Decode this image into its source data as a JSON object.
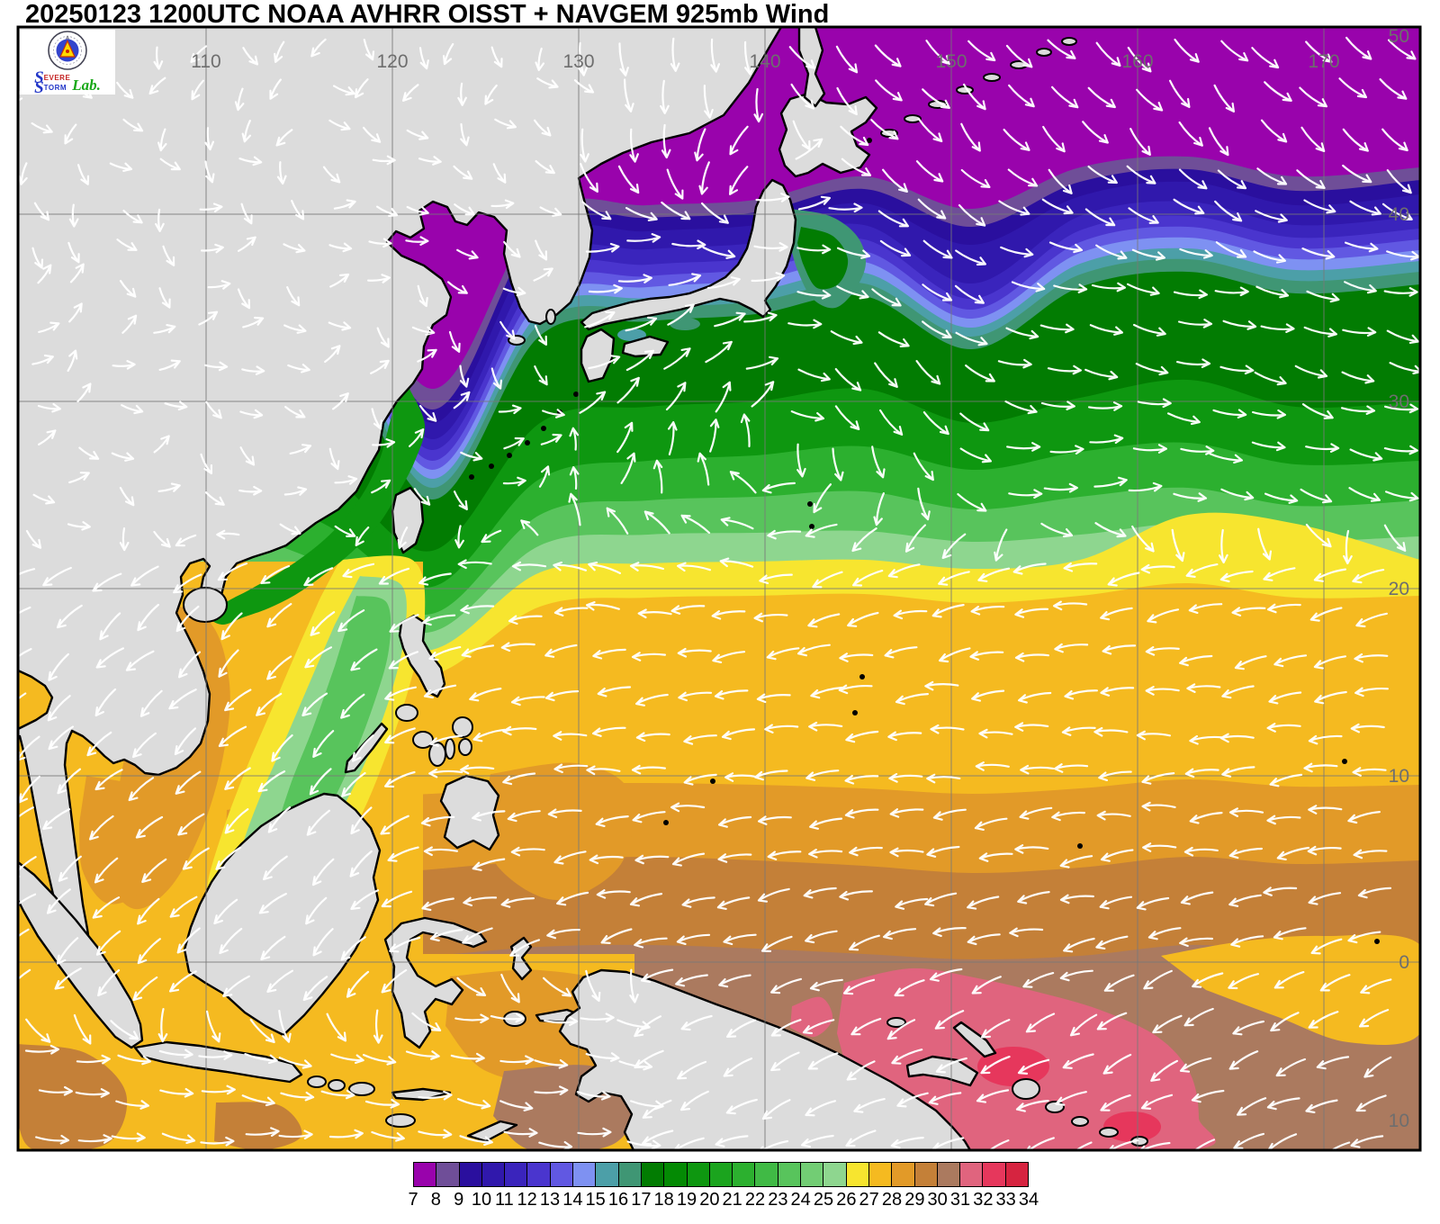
{
  "title": "20250123 1200UTC NOAA AVHRR OISST + NAVGEM 925mb Wind",
  "logo": {
    "seal_name": "university-seal",
    "brand_s1": "S",
    "brand_evere": "EVERE",
    "brand_s2": "S",
    "brand_torm": "TORM",
    "brand_lab": "Lab."
  },
  "axes": {
    "lon_labels": [
      "110",
      "120",
      "130",
      "140",
      "150",
      "160",
      "170"
    ],
    "lat_labels": [
      "50",
      "40",
      "30",
      "20",
      "10",
      "0",
      "10"
    ]
  },
  "colorbar": {
    "tick_labels": [
      "7",
      "8",
      "9",
      "10",
      "11",
      "12",
      "13",
      "14",
      "15",
      "16",
      "17",
      "18",
      "19",
      "20",
      "21",
      "22",
      "23",
      "24",
      "25",
      "26",
      "27",
      "28",
      "29",
      "30",
      "31",
      "32",
      "33",
      "34"
    ],
    "cell_colors": [
      "#9903AC",
      "#6F4E98",
      "#2A0F9E",
      "#3018AC",
      "#3A24BC",
      "#4A35CE",
      "#6158E2",
      "#7E91F2",
      "#4C9FA8",
      "#3F9674",
      "#027C02",
      "#048A04",
      "#0E9710",
      "#1BA41E",
      "#2CB02F",
      "#40BA45",
      "#58C45C",
      "#72CD74",
      "#8ED68F",
      "#F7E52F",
      "#F5BA20",
      "#E29A28",
      "#C48038",
      "#AB7A5F",
      "#E0647E",
      "#E6375C",
      "#D62440"
    ]
  },
  "palette": {
    "land": "#DCDCDC",
    "coast": "#000000",
    "grid": "#787878",
    "axis_label": "#6E6E6E",
    "wind": "#FFFFFF",
    "title_color": "#000000",
    "map_border": "#000000"
  },
  "chart_data": {
    "type": "heatmap",
    "title": "20250123 1200UTC NOAA AVHRR OISST + NAVGEM 925mb Wind",
    "field": "Sea surface temperature (deg C, shaded) with NAVGEM 925mb wind streamlines (white arrows)",
    "lon_range_deg_e": [
      100,
      175.5
    ],
    "lat_range_deg_n": [
      -10,
      50
    ],
    "lon_gridlines_deg_e": [
      110,
      120,
      130,
      140,
      150,
      160,
      170
    ],
    "lat_gridlines_deg_n": [
      50,
      40,
      30,
      20,
      10,
      0,
      -10
    ],
    "colorbar_min_c": 7,
    "colorbar_max_c": 34,
    "sst_zonal_summary": [
      {
        "region": "Sea of Okhotsk / NW Pacific north of ~42N",
        "sst_c": "7-8"
      },
      {
        "region": "Bohai Sea and northern Yellow Sea",
        "sst_c": "7-9"
      },
      {
        "region": "Kuroshio front band ~38-42N",
        "sst_c": "9-15"
      },
      {
        "region": "Sea of Japan south of 40N",
        "sst_c": "10-16"
      },
      {
        "region": "Kuroshio / subtropical band 28-38N",
        "sst_c": "17-24"
      },
      {
        "region": "Yellow band ~20-22N across basin",
        "sst_c": "26-27"
      },
      {
        "region": "Philippine Sea 8-20N",
        "sst_c": "27-29"
      },
      {
        "region": "South China Sea cool tongue",
        "sst_c": "25-26"
      },
      {
        "region": "Equatorial western Pacific",
        "sst_c": "29-31"
      },
      {
        "region": "Bismarck Sea / north of New Guinea",
        "sst_c": "31-33"
      }
    ],
    "wind_summary": [
      {
        "region": "North of 40N over NW Pacific",
        "flow": "strong northwesterly, streaming southeast"
      },
      {
        "region": "Sea of Japan",
        "flow": "northerly monsoon surge with small cyclonic eddy near 139E 41N"
      },
      {
        "region": "South of Japan ~30N 140E",
        "flow": "clockwise anticyclonic gyre"
      },
      {
        "region": "10-20N Pacific",
        "flow": "northeast trade winds toward west-southwest"
      },
      {
        "region": "South China Sea",
        "flow": "northeast winter monsoon toward southwest"
      },
      {
        "region": "Indonesia / Java Sea",
        "flow": "westerly monsoon toward east"
      },
      {
        "region": "North of New Guinea",
        "flow": "northwesterly, toward southwest"
      }
    ],
    "wind_model": "NAVGEM",
    "wind_level": "925mb",
    "sst_source": "NOAA AVHRR OISST"
  }
}
